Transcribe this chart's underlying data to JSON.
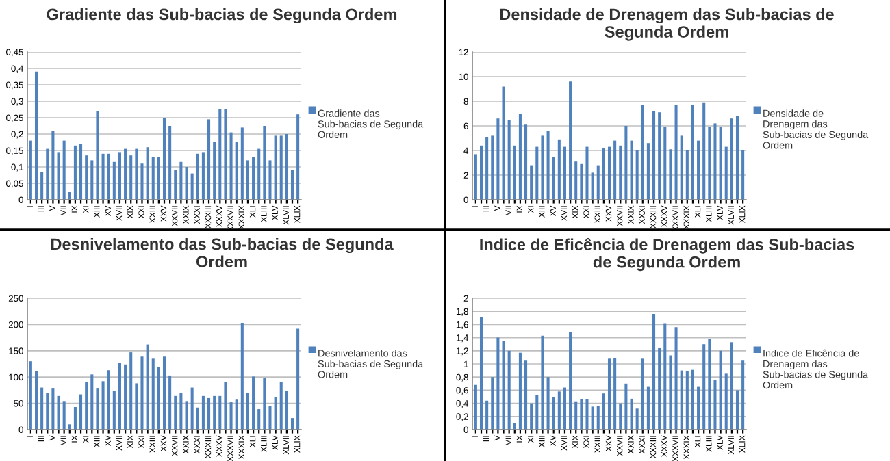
{
  "chart_data": [
    {
      "type": "bar",
      "title": "Gradiente das Sub-bacias de Segunda Ordem",
      "categories": [
        "I",
        null,
        "III",
        null,
        "V",
        null,
        "VII",
        null,
        "IX",
        null,
        "XI",
        null,
        "XIII",
        null,
        "XV",
        null,
        "XVII",
        null,
        "XIX",
        null,
        "XXI",
        null,
        "XXIII",
        null,
        "XXV",
        null,
        "XXVII",
        null,
        "XXIX",
        null,
        "XXXI",
        null,
        "XXXIII",
        null,
        "XXXV",
        null,
        "XXXVII",
        null,
        "XXXIX",
        null,
        "XLI",
        null,
        "XLIII",
        null,
        "XLV",
        null,
        "XLVII",
        null,
        "XLIX"
      ],
      "series": [
        {
          "name": "Gradiente das Sub-bacias de Segunda Ordem",
          "color": "#4f81bd",
          "values": [
            0.18,
            0.39,
            0.085,
            0.155,
            0.21,
            0.145,
            0.18,
            0.025,
            0.165,
            0.17,
            0.135,
            0.12,
            0.27,
            0.14,
            0.14,
            0.115,
            0.145,
            0.155,
            0.135,
            0.155,
            0.11,
            0.16,
            0.13,
            0.13,
            0.25,
            0.225,
            0.09,
            0.115,
            0.1,
            0.08,
            0.14,
            0.145,
            0.245,
            0.175,
            0.275,
            0.275,
            0.205,
            0.175,
            0.22,
            0.12,
            0.13,
            0.155,
            0.225,
            0.12,
            0.195,
            0.195,
            0.2,
            0.09,
            0.26
          ]
        }
      ],
      "ylim": [
        0,
        0.45
      ],
      "yticks": [
        0,
        {
          "value": 0.05,
          "label": "0,05"
        },
        {
          "value": 0.1,
          "label": "0,1"
        },
        {
          "value": 0.15,
          "label": "0,15"
        },
        {
          "value": 0.2,
          "label": "0,2"
        },
        {
          "value": 0.25,
          "label": "0,25"
        },
        {
          "value": 0.3,
          "label": "0,3"
        },
        {
          "value": 0.35,
          "label": "0,35"
        },
        {
          "value": 0.4,
          "label": "0,4"
        },
        {
          "value": 0.45,
          "label": "0,45"
        }
      ],
      "grid": "y",
      "legend": "right"
    },
    {
      "type": "bar",
      "title": "Densidade de Drenagem das Sub-bacias de Segunda Ordem",
      "categories": [
        "I",
        null,
        "III",
        null,
        "V",
        null,
        "VII",
        null,
        "IX",
        null,
        "XI",
        null,
        "XIII",
        null,
        "XV",
        null,
        "XVII",
        null,
        "XIX",
        null,
        "XXI",
        null,
        "XXIII",
        null,
        "XXV",
        null,
        "XXVII",
        null,
        "XXIX",
        null,
        "XXXI",
        null,
        "XXXIII",
        null,
        "XXXV",
        null,
        "XXXVII",
        null,
        "XXXIX",
        null,
        "XLI",
        null,
        "XLIII",
        null,
        "XLV",
        null,
        "XLVII",
        null,
        "XLIX"
      ],
      "series": [
        {
          "name": "Densidade de Drenagem das Sub-bacias de Segunda Ordem",
          "color": "#4f81bd",
          "values": [
            3.7,
            4.4,
            5.1,
            5.2,
            6.6,
            9.2,
            6.5,
            4.4,
            7.0,
            6.1,
            2.8,
            4.3,
            5.2,
            5.6,
            3.5,
            4.9,
            4.3,
            9.6,
            3.1,
            2.9,
            4.3,
            2.2,
            2.8,
            4.2,
            4.3,
            4.8,
            4.4,
            6.0,
            4.8,
            4.0,
            7.7,
            4.6,
            7.2,
            7.1,
            5.9,
            4.1,
            7.7,
            5.2,
            4.0,
            7.7,
            4.8,
            7.9,
            5.9,
            6.2,
            5.9,
            4.3,
            6.6,
            6.8,
            4.0
          ]
        }
      ],
      "ylim": [
        0,
        12
      ],
      "yticks": [
        0,
        2,
        4,
        6,
        8,
        10,
        12
      ],
      "grid": "y",
      "legend": "right"
    },
    {
      "type": "bar",
      "title": "Desnivelamento das Sub-bacias de Segunda Ordem",
      "categories": [
        "I",
        null,
        "III",
        null,
        "V",
        null,
        "VII",
        null,
        "IX",
        null,
        "XI",
        null,
        "XIII",
        null,
        "XV",
        null,
        "XVII",
        null,
        "XIX",
        null,
        "XXI",
        null,
        "XXIII",
        null,
        "XXV",
        null,
        "XXVII",
        null,
        "XXIX",
        null,
        "XXXI",
        null,
        "XXXIII",
        null,
        "XXXV",
        null,
        "XXXVII",
        null,
        "XXXIX",
        null,
        "XLI",
        null,
        "XLIII",
        null,
        "XLV",
        null,
        "XLVII",
        null,
        "XLIX"
      ],
      "series": [
        {
          "name": "Desnivelamento das Sub-bacias de Segunda Ordem",
          "color": "#4f81bd",
          "values": [
            130,
            112,
            80,
            70,
            78,
            64,
            53,
            10,
            43,
            67,
            90,
            105,
            78,
            92,
            113,
            73,
            127,
            124,
            147,
            88,
            139,
            162,
            135,
            119,
            139,
            103,
            64,
            70,
            53,
            80,
            42,
            64,
            60,
            64,
            64,
            90,
            52,
            57,
            203,
            69,
            101,
            39,
            99,
            45,
            62,
            90,
            73,
            22,
            192
          ]
        }
      ],
      "ylim": [
        0,
        250
      ],
      "yticks": [
        0,
        50,
        100,
        150,
        200,
        250
      ],
      "grid": "y",
      "legend": "right"
    },
    {
      "type": "bar",
      "title": "Indice de Eficência de Drenagem das Sub-bacias de Segunda Ordem",
      "categories": [
        "I",
        null,
        "III",
        null,
        "V",
        null,
        "VII",
        null,
        "IX",
        null,
        "XI",
        null,
        "XIII",
        null,
        "XV",
        null,
        "XVII",
        null,
        "XIX",
        null,
        "XXI",
        null,
        "XXIII",
        null,
        "XXV",
        null,
        "XXVII",
        null,
        "XXIX",
        null,
        "XXXI",
        null,
        "XXXIII",
        null,
        "XXXV",
        null,
        "XXXVII",
        null,
        "XXXIX",
        null,
        "XLI",
        null,
        "XLIII",
        null,
        "XLV",
        null,
        "XLVII",
        null,
        "XLIX"
      ],
      "series": [
        {
          "name": "Indice de Eficência de Drenagem das Sub-bacias de Segunda Ordem",
          "color": "#4f81bd",
          "values": [
            0.68,
            1.72,
            0.44,
            0.8,
            1.4,
            1.35,
            1.2,
            0.1,
            1.17,
            1.05,
            0.4,
            0.53,
            1.43,
            0.8,
            0.5,
            0.58,
            0.64,
            1.49,
            0.42,
            0.46,
            0.46,
            0.35,
            0.36,
            0.55,
            1.08,
            1.09,
            0.4,
            0.7,
            0.47,
            0.32,
            1.08,
            0.65,
            1.76,
            1.24,
            1.62,
            1.13,
            1.56,
            0.9,
            0.89,
            0.91,
            0.65,
            1.3,
            1.38,
            0.76,
            1.2,
            0.85,
            1.33,
            0.6,
            1.05
          ]
        }
      ],
      "ylim": [
        0,
        2
      ],
      "yticks": [
        0,
        {
          "value": 0.2,
          "label": "0,2"
        },
        {
          "value": 0.4,
          "label": "0,4"
        },
        {
          "value": 0.6,
          "label": "0,6"
        },
        {
          "value": 0.8,
          "label": "0,8"
        },
        1,
        {
          "value": 1.2,
          "label": "1,2"
        },
        {
          "value": 1.4,
          "label": "1,4"
        },
        {
          "value": 1.6,
          "label": "1,6"
        },
        {
          "value": 1.8,
          "label": "1,8"
        },
        2
      ],
      "grid": "y",
      "legend": "right"
    }
  ]
}
